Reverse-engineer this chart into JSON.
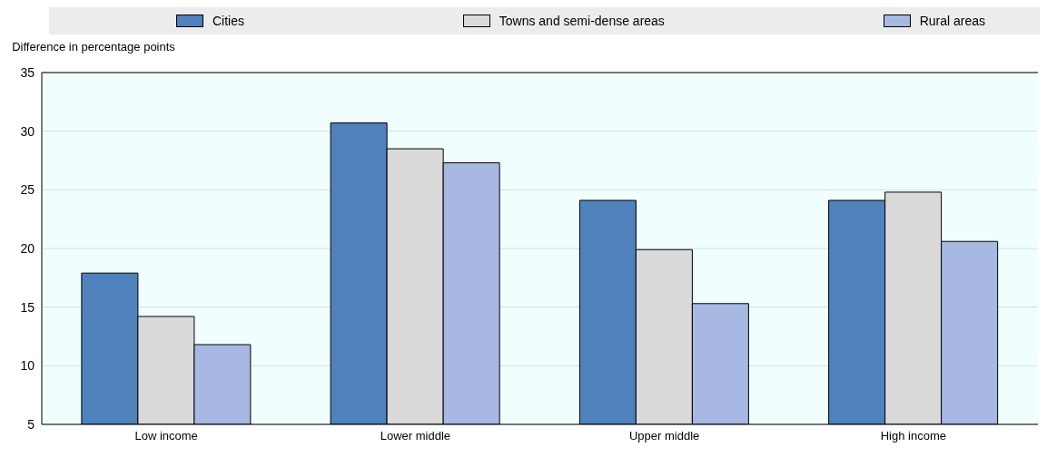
{
  "chart_data": {
    "type": "bar",
    "ylabel": "Difference in percentage points",
    "categories": [
      "Low income",
      "Lower middle",
      "Upper middle",
      "High income"
    ],
    "series": [
      {
        "name": "Cities",
        "color": "#4f81bd",
        "values": [
          17.9,
          30.7,
          24.1,
          24.1
        ]
      },
      {
        "name": "Towns and semi-dense areas",
        "color": "#dadada",
        "values": [
          14.2,
          28.5,
          19.9,
          24.8
        ]
      },
      {
        "name": "Rural areas",
        "color": "#a7b9e3",
        "values": [
          11.8,
          27.3,
          15.3,
          20.6
        ]
      }
    ],
    "ylim": [
      5,
      35
    ],
    "yticks": [
      5,
      10,
      15,
      20,
      25,
      30,
      35
    ],
    "grid": "y",
    "legend": "top"
  }
}
